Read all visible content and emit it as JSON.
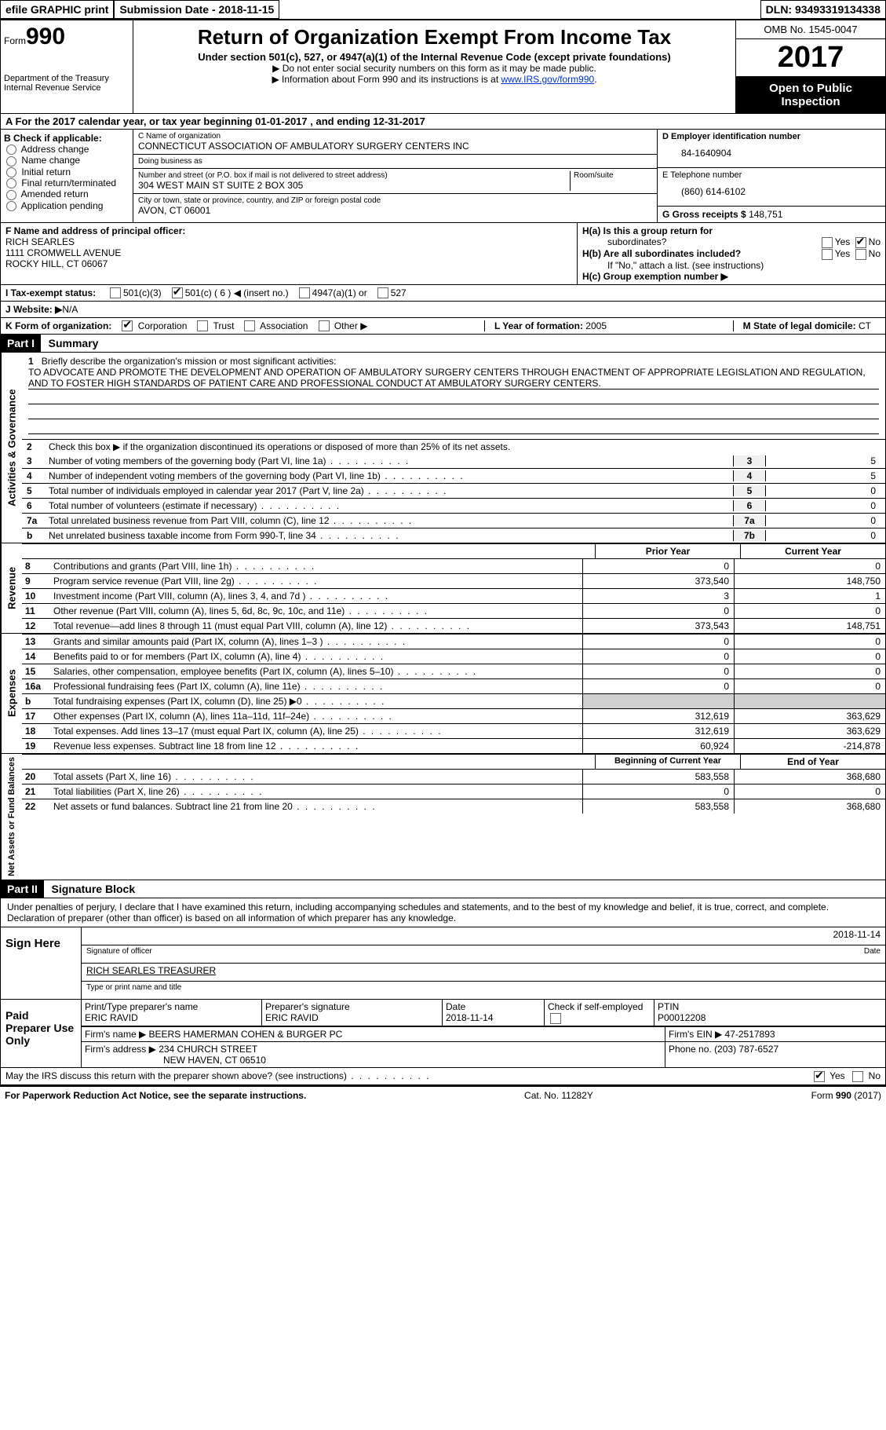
{
  "topbar": {
    "efile": "efile GRAPHIC print",
    "submission_label": "Submission Date - ",
    "submission_date": "2018-11-15",
    "dln_label": "DLN: ",
    "dln": "93493319134338"
  },
  "header": {
    "form_word": "Form",
    "form_num": "990",
    "dept1": "Department of the Treasury",
    "dept2": "Internal Revenue Service",
    "title": "Return of Organization Exempt From Income Tax",
    "subtitle": "Under section 501(c), 527, or 4947(a)(1) of the Internal Revenue Code (except private foundations)",
    "note1": "▶ Do not enter social security numbers on this form as it may be made public.",
    "note2_a": "▶ Information about Form 990 and its instructions is at ",
    "note2_link": "www.IRS.gov/form990",
    "note2_b": ".",
    "omb": "OMB No. 1545-0047",
    "year": "2017",
    "open1": "Open to Public",
    "open2": "Inspection"
  },
  "row_a": {
    "label_a": "A",
    "text": "  For the 2017 calendar year, or tax year beginning 01-01-2017    , and ending 12-31-2017"
  },
  "col_b": {
    "label": "B Check if applicable:",
    "items": [
      "Address change",
      "Name change",
      "Initial return",
      "Final return/terminated",
      "Amended return",
      "Application pending"
    ]
  },
  "col_c": {
    "name_label": "C Name of organization",
    "name": "CONNECTICUT ASSOCIATION OF AMBULATORY SURGERY CENTERS INC",
    "dba_label": "Doing business as",
    "dba": "",
    "street_label": "Number and street (or P.O. box if mail is not delivered to street address)",
    "room_label": "Room/suite",
    "street": "304 WEST MAIN ST SUITE 2 BOX 305",
    "city_label": "City or town, state or province, country, and ZIP or foreign postal code",
    "city": "AVON, CT  06001"
  },
  "col_d": {
    "ein_label": "D Employer identification number",
    "ein": "84-1640904",
    "phone_label": "E Telephone number",
    "phone": "(860) 614-6102",
    "gross_label": "G Gross receipts $ ",
    "gross": "148,751"
  },
  "row_f": {
    "label": "F  Name and address of principal officer:",
    "name": "RICH SEARLES",
    "addr1": "1111 CROMWELL AVENUE",
    "addr2": "ROCKY HILL, CT  06067",
    "ha_label": "H(a)  Is this a group return for",
    "ha_sub": "subordinates?",
    "hb_label": "H(b)  Are all subordinates included?",
    "hb_note": "If \"No,\" attach a list. (see instructions)",
    "hc_label": "H(c)  Group exemption number ▶",
    "yes": "Yes",
    "no": "No"
  },
  "row_i": {
    "label": "I   Tax-exempt status:",
    "o1": "501(c)(3)",
    "o2": "501(c) ( 6 ) ◀ (insert no.)",
    "o3": "4947(a)(1) or",
    "o4": "527"
  },
  "row_j": {
    "label": "J   Website: ▶",
    "val": "  N/A"
  },
  "row_k": {
    "label": "K Form of organization:",
    "o1": "Corporation",
    "o2": "Trust",
    "o3": "Association",
    "o4": "Other ▶",
    "year_label": "L Year of formation: ",
    "year": "2005",
    "state_label": "M State of legal domicile: ",
    "state": "CT"
  },
  "part1": {
    "header": "Part I",
    "title": "Summary",
    "vlabel_gov": "Activities & Governance",
    "vlabel_rev": "Revenue",
    "vlabel_exp": "Expenses",
    "vlabel_net": "Net Assets or Fund Balances",
    "line1_label": "1",
    "line1_text": "Briefly describe the organization's mission or most significant activities:",
    "mission": "TO ADVOCATE AND PROMOTE THE DEVELOPMENT AND OPERATION OF AMBULATORY SURGERY CENTERS THROUGH ENACTMENT OF APPROPRIATE LEGISLATION AND REGULATION, AND TO FOSTER HIGH STANDARDS OF PATIENT CARE AND PROFESSIONAL CONDUCT AT AMBULATORY SURGERY CENTERS.",
    "line2": "Check this box ▶      if the organization discontinued its operations or disposed of more than 25% of its net assets.",
    "lines_gov": [
      {
        "n": "3",
        "d": "Number of voting members of the governing body (Part VI, line 1a)",
        "b": "3",
        "v": "5"
      },
      {
        "n": "4",
        "d": "Number of independent voting members of the governing body (Part VI, line 1b)",
        "b": "4",
        "v": "5"
      },
      {
        "n": "5",
        "d": "Total number of individuals employed in calendar year 2017 (Part V, line 2a)",
        "b": "5",
        "v": "0"
      },
      {
        "n": "6",
        "d": "Total number of volunteers (estimate if necessary)",
        "b": "6",
        "v": "0"
      },
      {
        "n": "7a",
        "d": "Total unrelated business revenue from Part VIII, column (C), line 12",
        "b": "7a",
        "v": "0"
      },
      {
        "n": "b",
        "d": "Net unrelated business taxable income from Form 990-T, line 34",
        "b": "7b",
        "v": "0"
      }
    ],
    "col_prior": "Prior Year",
    "col_current": "Current Year",
    "lines_rev": [
      {
        "n": "8",
        "d": "Contributions and grants (Part VIII, line 1h)",
        "p": "0",
        "c": "0"
      },
      {
        "n": "9",
        "d": "Program service revenue (Part VIII, line 2g)",
        "p": "373,540",
        "c": "148,750"
      },
      {
        "n": "10",
        "d": "Investment income (Part VIII, column (A), lines 3, 4, and 7d )",
        "p": "3",
        "c": "1"
      },
      {
        "n": "11",
        "d": "Other revenue (Part VIII, column (A), lines 5, 6d, 8c, 9c, 10c, and 11e)",
        "p": "0",
        "c": "0"
      },
      {
        "n": "12",
        "d": "Total revenue—add lines 8 through 11 (must equal Part VIII, column (A), line 12)",
        "p": "373,543",
        "c": "148,751"
      }
    ],
    "lines_exp": [
      {
        "n": "13",
        "d": "Grants and similar amounts paid (Part IX, column (A), lines 1–3 )",
        "p": "0",
        "c": "0"
      },
      {
        "n": "14",
        "d": "Benefits paid to or for members (Part IX, column (A), line 4)",
        "p": "0",
        "c": "0"
      },
      {
        "n": "15",
        "d": "Salaries, other compensation, employee benefits (Part IX, column (A), lines 5–10)",
        "p": "0",
        "c": "0"
      },
      {
        "n": "16a",
        "d": "Professional fundraising fees (Part IX, column (A), line 11e)",
        "p": "0",
        "c": "0"
      },
      {
        "n": "b",
        "d": "Total fundraising expenses (Part IX, column (D), line 25) ▶0",
        "p": "",
        "c": "",
        "shaded": true
      },
      {
        "n": "17",
        "d": "Other expenses (Part IX, column (A), lines 11a–11d, 11f–24e)",
        "p": "312,619",
        "c": "363,629"
      },
      {
        "n": "18",
        "d": "Total expenses. Add lines 13–17 (must equal Part IX, column (A), line 25)",
        "p": "312,619",
        "c": "363,629"
      },
      {
        "n": "19",
        "d": "Revenue less expenses. Subtract line 18 from line 12",
        "p": "60,924",
        "c": "-214,878"
      }
    ],
    "col_begin": "Beginning of Current Year",
    "col_end": "End of Year",
    "lines_net": [
      {
        "n": "20",
        "d": "Total assets (Part X, line 16)",
        "p": "583,558",
        "c": "368,680"
      },
      {
        "n": "21",
        "d": "Total liabilities (Part X, line 26)",
        "p": "0",
        "c": "0"
      },
      {
        "n": "22",
        "d": "Net assets or fund balances. Subtract line 21 from line 20",
        "p": "583,558",
        "c": "368,680"
      }
    ]
  },
  "part2": {
    "header": "Part II",
    "title": "Signature Block",
    "declaration": "Under penalties of perjury, I declare that I have examined this return, including accompanying schedules and statements, and to the best of my knowledge and belief, it is true, correct, and complete. Declaration of preparer (other than officer) is based on all information of which preparer has any knowledge.",
    "sign_here": "Sign Here",
    "sig_officer_lab": "Signature of officer",
    "sig_date": "2018-11-14",
    "sig_date_lab": "Date",
    "officer_name": "RICH SEARLES TREASURER",
    "officer_name_lab": "Type or print name and title",
    "paid_prep": "Paid Preparer Use Only",
    "prep_name_lab": "Print/Type preparer's name",
    "prep_name": "ERIC RAVID",
    "prep_sig_lab": "Preparer's signature",
    "prep_sig": "ERIC RAVID",
    "prep_date_lab": "Date",
    "prep_date": "2018-11-14",
    "prep_check_lab": "Check        if self-employed",
    "ptin_lab": "PTIN",
    "ptin": "P00012208",
    "firm_name_lab": "Firm's name     ▶ ",
    "firm_name": "BEERS HAMERMAN COHEN & BURGER PC",
    "firm_ein_lab": "Firm's EIN ▶ ",
    "firm_ein": "47-2517893",
    "firm_addr_lab": "Firm's address ▶ ",
    "firm_addr1": "234 CHURCH STREET",
    "firm_addr2": "NEW HAVEN, CT  06510",
    "firm_phone_lab": "Phone no. ",
    "firm_phone": "(203) 787-6527",
    "discuss": "May the IRS discuss this return with the preparer shown above? (see instructions)",
    "yes": "Yes",
    "no": "No"
  },
  "footer": {
    "left": "For Paperwork Reduction Act Notice, see the separate instructions.",
    "center": "Cat. No. 11282Y",
    "right": "Form 990 (2017)"
  }
}
